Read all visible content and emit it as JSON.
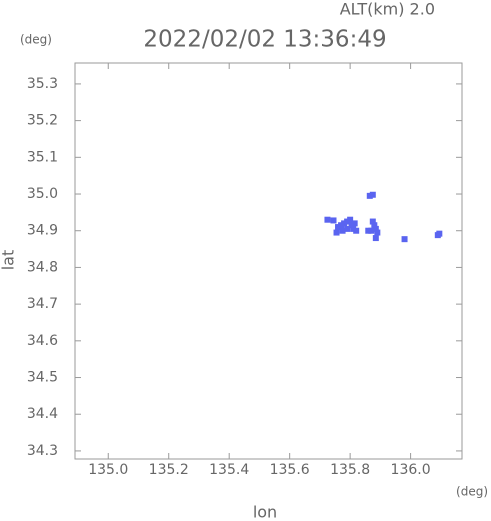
{
  "chart_data": {
    "type": "scatter",
    "title": "2022/02/02 13:36:49",
    "altitude_label": "ALT(km)  2.0",
    "y_unit": "(deg)",
    "x_unit": "(deg)",
    "xlabel": "lon",
    "ylabel": "lat",
    "xlim": [
      134.89,
      136.17
    ],
    "ylim": [
      34.278,
      35.357
    ],
    "xticks": [
      {
        "value": 135.0,
        "label": "135.0"
      },
      135.2,
      135.4,
      135.6,
      135.8,
      {
        "value": 136.0,
        "label": "136.0"
      }
    ],
    "yticks": [
      34.3,
      34.4,
      34.5,
      34.6,
      34.7,
      34.8,
      34.9,
      {
        "value": 35.0,
        "label": "35.0"
      },
      35.1,
      35.2,
      35.3
    ],
    "color": "#5a64f0",
    "x": [
      135.745,
      135.76,
      135.77,
      135.78,
      135.79,
      135.8,
      135.805,
      135.81,
      135.82,
      135.815,
      135.79,
      135.775,
      135.755,
      135.725,
      135.865,
      135.875,
      135.875,
      135.88,
      135.885,
      135.89,
      135.87,
      135.86,
      135.885,
      135.98,
      136.09,
      136.095
    ],
    "y": [
      34.928,
      34.91,
      34.915,
      34.92,
      34.925,
      34.93,
      34.915,
      34.905,
      34.9,
      34.92,
      34.905,
      34.9,
      34.895,
      34.93,
      34.995,
      34.998,
      34.925,
      34.915,
      34.905,
      34.895,
      34.9,
      34.9,
      34.88,
      34.877,
      34.888,
      34.892
    ]
  }
}
